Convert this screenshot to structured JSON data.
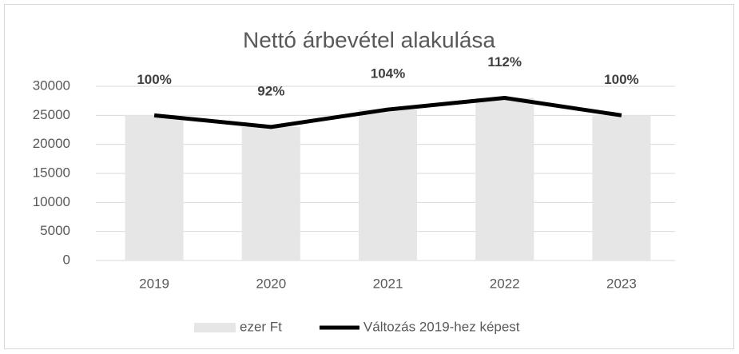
{
  "chart_data": {
    "type": "bar",
    "title": "Nettó árbevétel alakulása",
    "categories": [
      "2019",
      "2020",
      "2021",
      "2022",
      "2023"
    ],
    "series": [
      {
        "name": "ezer Ft",
        "type": "bar",
        "color": "#e7e6e6",
        "values": [
          25000,
          23000,
          26000,
          28000,
          25000
        ]
      },
      {
        "name": "Változás 2019-hez képest",
        "type": "line",
        "axis": "y2",
        "color": "#000000",
        "values": [
          100,
          92,
          104,
          112,
          100
        ],
        "value_labels": [
          "100%",
          "92%",
          "104%",
          "112%",
          "100%"
        ]
      }
    ],
    "ylim": [
      0,
      30000
    ],
    "yticks": [
      0,
      5000,
      10000,
      15000,
      20000,
      25000,
      30000
    ],
    "y2lim": [
      0,
      120
    ],
    "grid": true,
    "legend": "bottom"
  }
}
